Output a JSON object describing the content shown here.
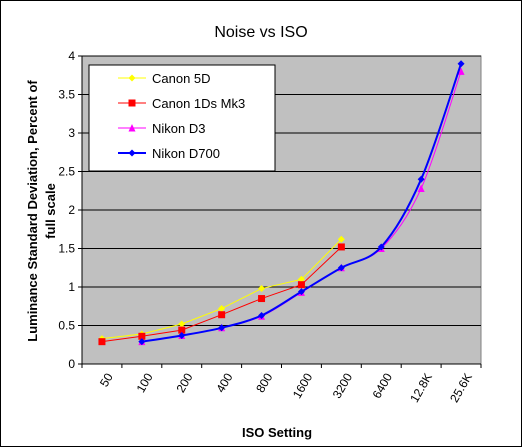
{
  "chart_data": {
    "type": "line",
    "title": "Noise vs ISO",
    "xlabel": "ISO Setting",
    "ylabel": "Luminance Standard Deviation, Percent of full scale",
    "ylabel_lines": [
      "Luminance Standard Deviation, Percent of",
      "full scale"
    ],
    "categories": [
      "50",
      "100",
      "200",
      "400",
      "800",
      "1600",
      "3200",
      "6400",
      "12.8K",
      "25.6K"
    ],
    "ylim": [
      0,
      4
    ],
    "yticks": [
      0,
      0.5,
      1,
      1.5,
      2,
      2.5,
      3,
      3.5,
      4
    ],
    "ytick_labels": [
      "0",
      "0.5",
      "1",
      "1.5",
      "2",
      "2.5",
      "3",
      "3.5",
      "4"
    ],
    "grid": true,
    "legend_position": "top-left",
    "plot_background": "#c0c0c0",
    "series": [
      {
        "name": "Canon 5D",
        "color": "#ffff00",
        "marker": "diamond",
        "smooth": false,
        "points": [
          [
            0,
            0.33
          ],
          [
            1,
            0.39
          ],
          [
            2,
            0.52
          ],
          [
            3,
            0.72
          ],
          [
            4,
            0.98
          ],
          [
            5,
            1.1
          ],
          [
            6,
            1.62
          ]
        ]
      },
      {
        "name": "Canon 1Ds Mk3",
        "color": "#ff0000",
        "marker": "square",
        "smooth": false,
        "points": [
          [
            0,
            0.29
          ],
          [
            1,
            0.36
          ],
          [
            2,
            0.44
          ],
          [
            3,
            0.64
          ],
          [
            4,
            0.85
          ],
          [
            5,
            1.03
          ],
          [
            6,
            1.52
          ]
        ]
      },
      {
        "name": "Nikon D3",
        "color": "#ff00ff",
        "marker": "triangle",
        "smooth": true,
        "points": [
          [
            1,
            0.29
          ],
          [
            2,
            0.37
          ],
          [
            3,
            0.47
          ],
          [
            4,
            0.62
          ],
          [
            5,
            0.93
          ],
          [
            6,
            1.25
          ],
          [
            7,
            1.5
          ],
          [
            8,
            2.28
          ],
          [
            9,
            3.8
          ]
        ]
      },
      {
        "name": "Nikon D700",
        "color": "#0000ff",
        "marker": "diamond",
        "smooth": true,
        "points": [
          [
            1,
            0.29
          ],
          [
            2,
            0.37
          ],
          [
            3,
            0.47
          ],
          [
            4,
            0.63
          ],
          [
            5,
            0.94
          ],
          [
            6,
            1.25
          ],
          [
            7,
            1.52
          ],
          [
            8,
            2.4
          ],
          [
            9,
            3.9
          ]
        ]
      }
    ]
  }
}
